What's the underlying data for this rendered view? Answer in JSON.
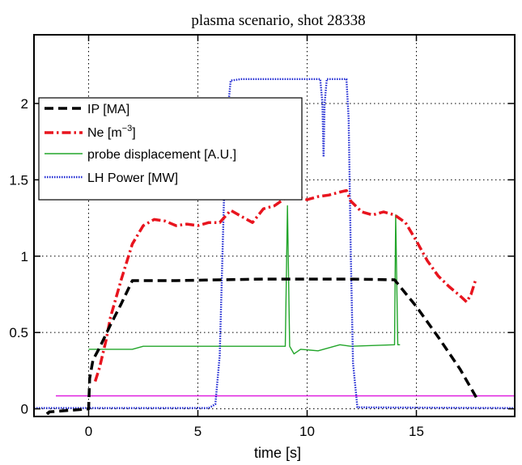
{
  "chart_data": {
    "type": "line",
    "title": "plasma scenario, shot 28338",
    "xlabel": "time [s]",
    "ylabel": "",
    "xlim": [
      -2.5,
      19.5
    ],
    "ylim": [
      -0.05,
      2.45
    ],
    "xticks": [
      0,
      5,
      10,
      15
    ],
    "yticks": [
      0,
      0.5,
      1,
      1.5,
      2
    ],
    "xtick_labels": [
      "0",
      "5",
      "10",
      "15"
    ],
    "ytick_labels": [
      "0",
      "0.5",
      "1",
      "1.5",
      "2"
    ],
    "grid": true,
    "legend_position": "upper-left",
    "series": [
      {
        "name": "IP [MA]",
        "style": "dashed",
        "color": "#000000",
        "x": [
          -1.9,
          -1.85,
          -1.8,
          0.0,
          0.05,
          0.2,
          0.5,
          1.0,
          1.5,
          2.0,
          4.0,
          6.0,
          8.0,
          10.0,
          12.0,
          14.0,
          15.0,
          16.0,
          17.0,
          17.8
        ],
        "y": [
          -0.02,
          -0.03,
          -0.02,
          0.0,
          0.2,
          0.32,
          0.4,
          0.55,
          0.69,
          0.84,
          0.84,
          0.845,
          0.85,
          0.85,
          0.85,
          0.845,
          0.67,
          0.47,
          0.26,
          0.06
        ]
      },
      {
        "name": "Ne [m⁻³]",
        "name_base": "Ne [m",
        "name_sup": "−3",
        "name_end": "]",
        "style": "dash-dot",
        "color": "#e8141e",
        "x": [
          0.3,
          0.5,
          0.8,
          1.0,
          1.5,
          2.0,
          2.5,
          3.0,
          3.5,
          4.0,
          4.5,
          5.0,
          5.5,
          6.0,
          6.5,
          7.0,
          7.5,
          8.0,
          8.5,
          9.0,
          9.5,
          10.0,
          10.5,
          11.0,
          11.5,
          11.8,
          12.0,
          12.5,
          13.0,
          13.5,
          14.0,
          14.5,
          15.0,
          15.5,
          16.0,
          16.5,
          17.0,
          17.3,
          17.5,
          17.7
        ],
        "y": [
          0.18,
          0.27,
          0.45,
          0.6,
          0.85,
          1.08,
          1.2,
          1.24,
          1.23,
          1.2,
          1.21,
          1.2,
          1.22,
          1.22,
          1.3,
          1.26,
          1.22,
          1.31,
          1.33,
          1.38,
          1.39,
          1.37,
          1.39,
          1.4,
          1.42,
          1.43,
          1.36,
          1.29,
          1.27,
          1.29,
          1.27,
          1.22,
          1.1,
          0.97,
          0.87,
          0.8,
          0.74,
          0.7,
          0.75,
          0.84
        ]
      },
      {
        "name": "probe displacement [A.U.]",
        "style": "solid",
        "color": "#22a52a",
        "x": [
          0.0,
          2.0,
          2.5,
          6.0,
          9.0,
          9.1,
          9.2,
          9.4,
          9.7,
          10.5,
          11.5,
          12.0,
          14.0,
          14.05,
          14.15,
          14.25
        ],
        "y": [
          0.39,
          0.39,
          0.41,
          0.41,
          0.41,
          1.33,
          0.41,
          0.36,
          0.39,
          0.38,
          0.42,
          0.41,
          0.42,
          1.27,
          0.42,
          0.42
        ]
      },
      {
        "name": "LH Power [MW]",
        "style": "dotted",
        "color": "#1e28d2",
        "x": [
          -2.5,
          5.5,
          5.8,
          6.0,
          6.2,
          6.4,
          6.5,
          7.0,
          8.0,
          9.0,
          10.0,
          10.6,
          10.7,
          10.75,
          10.8,
          10.9,
          11.0,
          11.5,
          11.8,
          11.9,
          12.0,
          12.1,
          12.3,
          19.5
        ],
        "y": [
          0.005,
          0.005,
          0.03,
          0.35,
          1.4,
          2.0,
          2.15,
          2.16,
          2.16,
          2.16,
          2.16,
          2.16,
          2.0,
          1.65,
          2.0,
          2.16,
          2.16,
          2.16,
          2.16,
          1.9,
          1.0,
          0.3,
          0.01,
          0.005
        ]
      },
      {
        "name": "",
        "style": "solid",
        "color": "#e020e0",
        "x": [
          -1.5,
          19.5
        ],
        "y": [
          0.085,
          0.085
        ]
      }
    ]
  }
}
